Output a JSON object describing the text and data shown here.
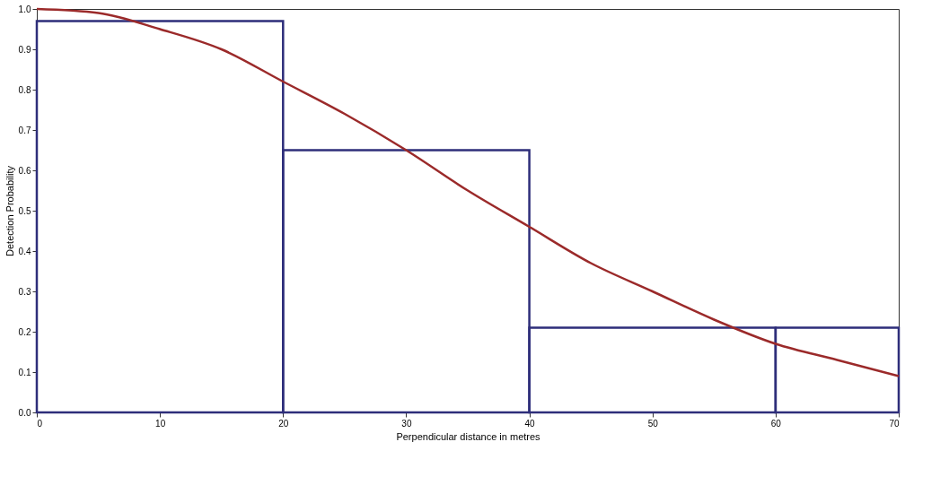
{
  "chart_data": {
    "type": "histogram",
    "xlabel": "Perpendicular distance in metres",
    "ylabel": "Detection Probability",
    "bins": [
      0,
      20,
      40,
      60,
      70
    ],
    "values": [
      0.97,
      0.65,
      0.21,
      0.21
    ],
    "color": "#2e2e7a",
    "series": [
      {
        "type": "line",
        "color": "#9b2a2a",
        "x": [
          0,
          5,
          10,
          15,
          20,
          25,
          30,
          35,
          40,
          45,
          50,
          55,
          60,
          65,
          70
        ],
        "values": [
          1.0,
          0.99,
          0.95,
          0.9,
          0.82,
          0.74,
          0.65,
          0.55,
          0.46,
          0.37,
          0.3,
          0.23,
          0.17,
          0.13,
          0.09
        ]
      }
    ],
    "xlim": [
      0,
      70
    ],
    "xticks": [
      0,
      10,
      20,
      30,
      40,
      50,
      60,
      70
    ],
    "ylim": [
      0,
      1.0
    ],
    "yticks": [
      {
        "value": 0,
        "label": "0.0"
      },
      {
        "value": 0.1,
        "label": "0.1"
      },
      {
        "value": 0.2,
        "label": "0.2"
      },
      {
        "value": 0.3,
        "label": "0.3"
      },
      {
        "value": 0.4,
        "label": "0.4"
      },
      {
        "value": 0.5,
        "label": "0.5"
      },
      {
        "value": 0.6,
        "label": "0.6"
      },
      {
        "value": 0.7,
        "label": "0.7"
      },
      {
        "value": 0.8,
        "label": "0.8"
      },
      {
        "value": 0.9,
        "label": "0.9"
      },
      {
        "value": 1.0,
        "label": "1.0"
      }
    ],
    "grid": false,
    "marker": "none",
    "line_style": "solid"
  }
}
